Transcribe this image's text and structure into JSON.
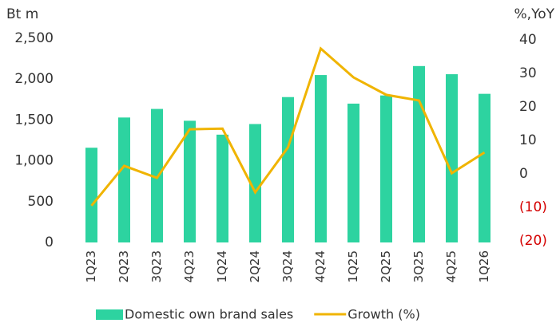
{
  "chart_data": {
    "type": "bar-line",
    "ylabel": "Bt m",
    "y2label": "%,YoY",
    "categories": [
      "1Q23",
      "2Q23",
      "3Q23",
      "4Q23",
      "1Q24",
      "2Q24",
      "3Q24",
      "4Q24",
      "1Q25",
      "2Q25",
      "3Q25",
      "4Q25",
      "1Q26"
    ],
    "series": [
      {
        "name": "Domestic own brand sales",
        "type": "bar",
        "color": "#2dd3a0",
        "values": [
          1160,
          1530,
          1635,
          1490,
          1320,
          1450,
          1780,
          2050,
          1700,
          1800,
          2160,
          2060,
          1820
        ]
      },
      {
        "name": "Growth (%)",
        "type": "line",
        "axis": "y2",
        "color": "#f0b400",
        "values": [
          -9.5,
          2.4,
          -1.2,
          13.3,
          13.5,
          -5.5,
          7.9,
          37.4,
          28.8,
          23.6,
          21.9,
          0.2,
          6.4
        ]
      }
    ],
    "ylim": [
      0,
      2500
    ],
    "yticks": [
      0,
      500,
      {
        "value": 1000,
        "label": "1,000"
      },
      {
        "value": 1500,
        "label": "1,500"
      },
      {
        "value": 2000,
        "label": "2,000"
      },
      {
        "value": 2500,
        "label": "2,500"
      }
    ],
    "y2lim": [
      -20,
      40
    ],
    "y2ticks": [
      {
        "value": -20,
        "label": "(20)"
      },
      {
        "value": -10,
        "label": "(10)"
      },
      0,
      10,
      20,
      30,
      40
    ],
    "negative_label_color": "#d40000"
  }
}
